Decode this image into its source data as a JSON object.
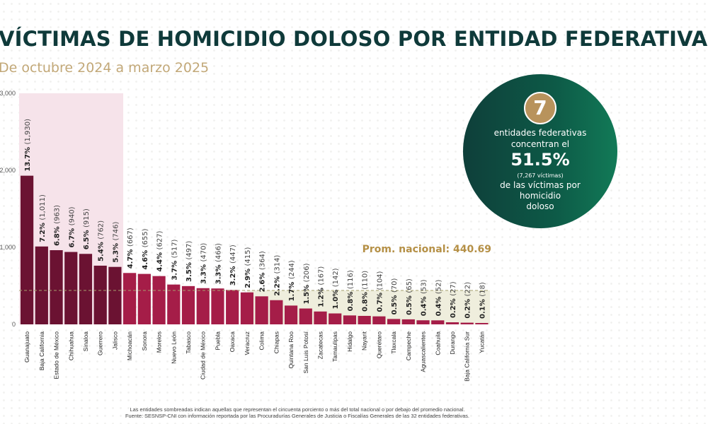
{
  "header": {
    "title": "VÍCTIMAS DE HOMICIDIO DOLOSO POR ENTIDAD FEDERATIVA",
    "subtitle": "De octubre 2024 a marzo 2025"
  },
  "callout": {
    "number": "7",
    "line1": "entidades federativas",
    "line2": "concentran el",
    "percent": "51.5%",
    "count": "(7,267 víctimas)",
    "line3": "de las víctimas por",
    "line4": "homicidio",
    "line5": "doloso"
  },
  "footnote": {
    "line1": "Las entidades sombreadas indican aquellas que representan el cincuenta porciento o más del total nacional o por debajo del promedio nacional.",
    "line2": "Fuente: SESNSP-CNI con información reportada por las Procuradurías Generales de Justicia o Fiscalías Generales de las 32 entidades federativas."
  },
  "colors": {
    "top_bar": "#6b1232",
    "rest_bar": "#a51d48",
    "top_shade": "#f6e3ea",
    "below_avg_shade": "#efeedd",
    "avg_line": "#a6a06c",
    "avg_label": "#b59046"
  },
  "chart_data": {
    "type": "bar",
    "title": "VÍCTIMAS DE HOMICIDIO DOLOSO POR ENTIDAD FEDERATIVA",
    "subtitle": "De octubre 2024 a marzo 2025",
    "xlabel": "",
    "ylabel": "",
    "ylim": [
      0,
      3000
    ],
    "yticks": [
      0,
      1000,
      2000,
      3000
    ],
    "ytick_labels": [
      "0",
      "1,000",
      "2,000",
      "3,000"
    ],
    "grid": false,
    "categories": [
      "Guanajuato",
      "Baja California",
      "Estado de México",
      "Chihuahua",
      "Sinaloa",
      "Guerrero",
      "Jalisco",
      "Michoacán",
      "Sonora",
      "Morelos",
      "Nuevo León",
      "Tabasco",
      "Ciudad de México",
      "Puebla",
      "Oaxaca",
      "Veracruz",
      "Colima",
      "Chiapas",
      "Quintana Roo",
      "San Luis Potosí",
      "Zacatecas",
      "Tamaulipas",
      "Hidalgo",
      "Nayarit",
      "Querétaro",
      "Tlaxcala",
      "Campeche",
      "Aguascalientes",
      "Coahuila",
      "Durango",
      "Baja California Sur",
      "Yucatán"
    ],
    "values": [
      1930,
      1011,
      963,
      940,
      915,
      762,
      746,
      667,
      655,
      627,
      517,
      497,
      470,
      466,
      447,
      415,
      364,
      314,
      244,
      206,
      167,
      142,
      116,
      110,
      104,
      70,
      65,
      53,
      52,
      27,
      22,
      18
    ],
    "percent_labels": [
      "13.7%",
      "7.2%",
      "6.8%",
      "6.7%",
      "6.5%",
      "5.4%",
      "5.3%",
      "4.7%",
      "4.6%",
      "4.4%",
      "3.7%",
      "3.5%",
      "3.3%",
      "3.3%",
      "3.2%",
      "2.9%",
      "2.6%",
      "2.2%",
      "1.7%",
      "1.5%",
      "1.2%",
      "1.0%",
      "0.8%",
      "0.8%",
      "0.7%",
      "0.5%",
      "0.5%",
      "0.4%",
      "0.4%",
      "0.2%",
      "0.2%",
      "0.1%"
    ],
    "value_labels": [
      "(1,930)",
      "(1,011)",
      "(963)",
      "(940)",
      "(915)",
      "(762)",
      "(746)",
      "(667)",
      "(655)",
      "(627)",
      "(517)",
      "(497)",
      "(470)",
      "(466)",
      "(447)",
      "(415)",
      "(364)",
      "(314)",
      "(244)",
      "(206)",
      "(167)",
      "(142)",
      "(116)",
      "(110)",
      "(104)",
      "(70)",
      "(65)",
      "(53)",
      "(52)",
      "(27)",
      "(22)",
      "(18)"
    ],
    "top_group_count": 7,
    "average": 440.69,
    "average_label": "Prom. nacional: 440.69"
  }
}
